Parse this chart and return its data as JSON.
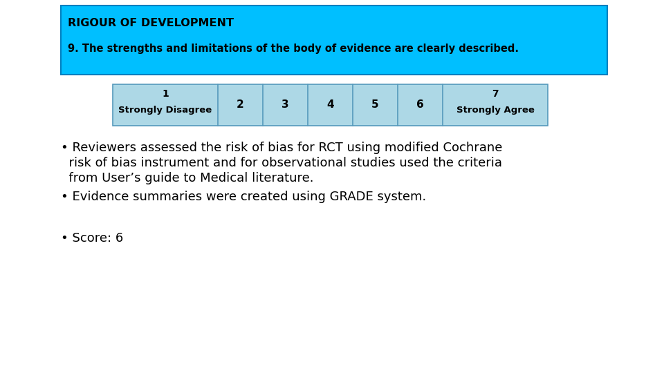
{
  "title_box_color": "#00BFFF",
  "title_box_border": "#007FBF",
  "header_text": "RIGOUR OF DEVELOPMENT",
  "subheader_text": "9. The strengths and limitations of the body of evidence are clearly described.",
  "scale_labels_top": [
    "1",
    "",
    "",
    "",
    "",
    "",
    "7"
  ],
  "scale_labels_bot": [
    "Strongly Disagree",
    "2",
    "3",
    "4",
    "5",
    "6",
    "Strongly Agree"
  ],
  "scale_bg": "#ADD8E6",
  "scale_border": "#5599BB",
  "bullet1_line1": "• Reviewers assessed the risk of bias for RCT using modified Cochrane",
  "bullet1_line2": "  risk of bias instrument and for observational studies used the criteria",
  "bullet1_line3": "  from User’s guide to Medical literature.",
  "bullet2": "• Evidence summaries were created using GRADE system.",
  "bullet3": "• Score: 6",
  "bg_color": "#FFFFFF",
  "text_color": "#000000",
  "header_font_size": 11.5,
  "subheader_font_size": 10.5,
  "body_font_size": 13,
  "scale_font_size": 10
}
